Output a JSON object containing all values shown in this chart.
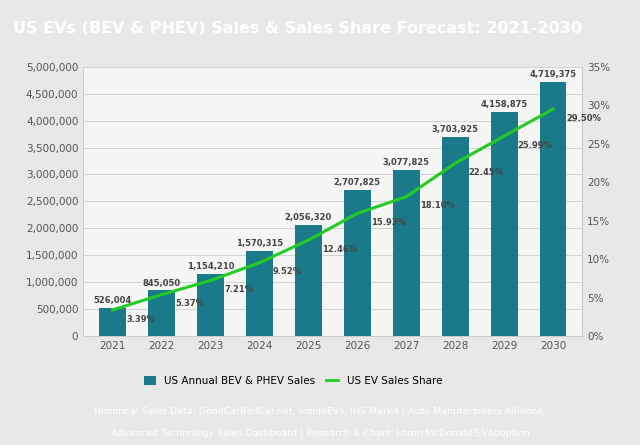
{
  "title": "US EVs (BEV & PHEV) Sales & Sales Share Forecast: 2021-2030",
  "years": [
    2021,
    2022,
    2023,
    2024,
    2025,
    2026,
    2027,
    2028,
    2029,
    2030
  ],
  "sales": [
    526004,
    845050,
    1154210,
    1570315,
    2056320,
    2707825,
    3077825,
    3703925,
    4158875,
    4719375
  ],
  "share": [
    3.39,
    5.37,
    7.21,
    9.52,
    12.46,
    15.93,
    18.1,
    22.45,
    25.99,
    29.5
  ],
  "bar_color": "#1a7a8a",
  "line_color": "#22cc22",
  "title_bg_color": "#0e9ab5",
  "title_text_color": "#ffffff",
  "footer_bg_color": "#0e9ab5",
  "footer_text_color": "#ffffff",
  "footer_line1": "Historical Sales Data: GoodCarBadCar.net, InsideEVs, IHS Markit / Auto Manufacturers Alliance,",
  "footer_line2": "Advanced Technology Sales Dashboard | Research & Chart: Loren McDonald/EVAdoption",
  "chart_bg_color": "#e8e8e8",
  "plot_bg_color": "#f5f5f5",
  "ylim_left": [
    0,
    5000000
  ],
  "ylim_right": [
    0,
    35
  ],
  "yticks_left": [
    0,
    500000,
    1000000,
    1500000,
    2000000,
    2500000,
    3000000,
    3500000,
    4000000,
    4500000,
    5000000
  ],
  "yticks_right": [
    0,
    5,
    10,
    15,
    20,
    25,
    30,
    35
  ],
  "legend_bar_label": "US Annual BEV & PHEV Sales",
  "legend_line_label": "US EV Sales Share",
  "annot_color": "#444444"
}
